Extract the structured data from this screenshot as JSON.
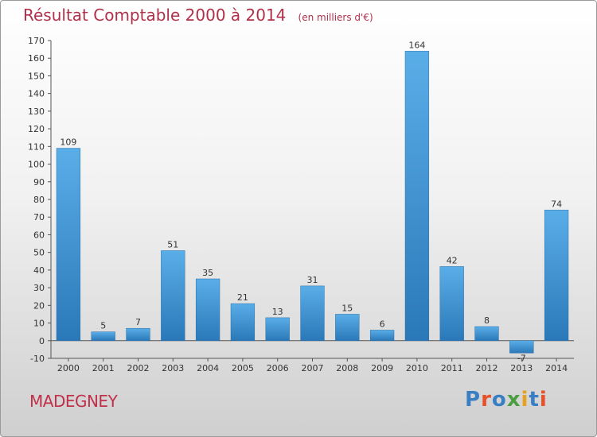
{
  "header": {
    "title": "Résultat Comptable 2000 à 2014",
    "subtitle": "(en milliers d'€)"
  },
  "footer": {
    "commune": "MADEGNEY",
    "logo": [
      "P",
      "r",
      "o",
      "x",
      "i",
      "t",
      "i"
    ]
  },
  "colors": {
    "bar_light": "#5aaee8",
    "bar_dark": "#2a78b8",
    "title": "#b0304a",
    "logo": [
      "#3a7fc4",
      "#e8502a",
      "#3a7fc4",
      "#4aa040",
      "#e8a020",
      "#3a7fc4",
      "#e8502a"
    ]
  },
  "chart_data": {
    "type": "bar",
    "categories": [
      "2000",
      "2001",
      "2002",
      "2003",
      "2004",
      "2005",
      "2006",
      "2007",
      "2008",
      "2009",
      "2010",
      "2011",
      "2012",
      "2013",
      "2014"
    ],
    "values": [
      109,
      5,
      7,
      51,
      35,
      21,
      13,
      31,
      15,
      6,
      164,
      42,
      8,
      -7,
      74
    ],
    "ylim": [
      -10,
      170
    ],
    "yticks": [
      -10,
      0,
      10,
      20,
      30,
      40,
      50,
      60,
      70,
      80,
      90,
      100,
      110,
      120,
      130,
      140,
      150,
      160,
      170
    ],
    "grid": false,
    "xlabel": "",
    "ylabel": ""
  }
}
